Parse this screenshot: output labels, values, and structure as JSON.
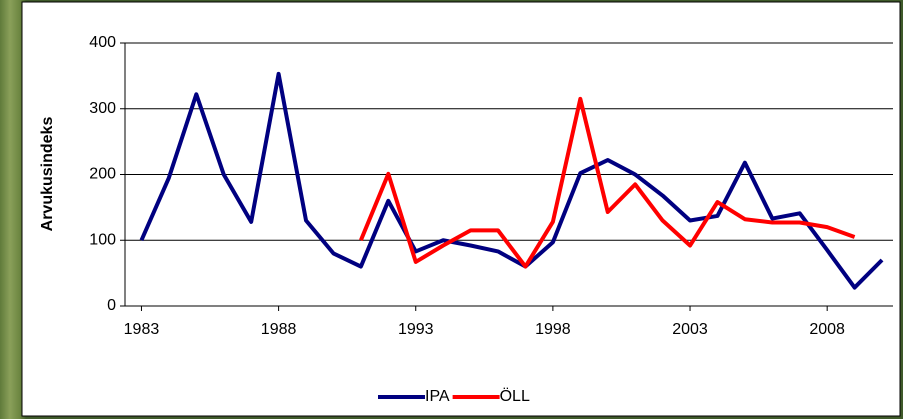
{
  "chart_data": {
    "type": "line",
    "y_label": "Arvukusindeks",
    "x": [
      1983,
      1984,
      1985,
      1986,
      1987,
      1988,
      1989,
      1990,
      1991,
      1992,
      1993,
      1994,
      1995,
      1996,
      1997,
      1998,
      1999,
      2000,
      2001,
      2002,
      2003,
      2004,
      2005,
      2006,
      2007,
      2008,
      2009,
      2010
    ],
    "series": [
      {
        "name": "IPA",
        "color": "#000080",
        "values": [
          100,
          195,
          322,
          200,
          128,
          353,
          130,
          80,
          60,
          160,
          83,
          100,
          92,
          83,
          60,
          97,
          202,
          222,
          200,
          168,
          130,
          137,
          218,
          133,
          141,
          85,
          28,
          70
        ]
      },
      {
        "name": "ÖLL",
        "color": "#ff0000",
        "values": [
          null,
          null,
          null,
          null,
          null,
          null,
          null,
          null,
          100,
          201,
          67,
          92,
          115,
          115,
          60,
          128,
          315,
          143,
          185,
          130,
          92,
          158,
          132,
          127,
          127,
          120,
          105,
          null
        ]
      }
    ],
    "xlim": [
      1982.4,
      2010.4
    ],
    "xticks": [
      1983,
      1988,
      1993,
      1998,
      2003,
      2008
    ],
    "ylim": [
      0,
      400
    ],
    "yticks": [
      0,
      100,
      200,
      300,
      400
    ],
    "grid": true,
    "legend": "bottom"
  }
}
